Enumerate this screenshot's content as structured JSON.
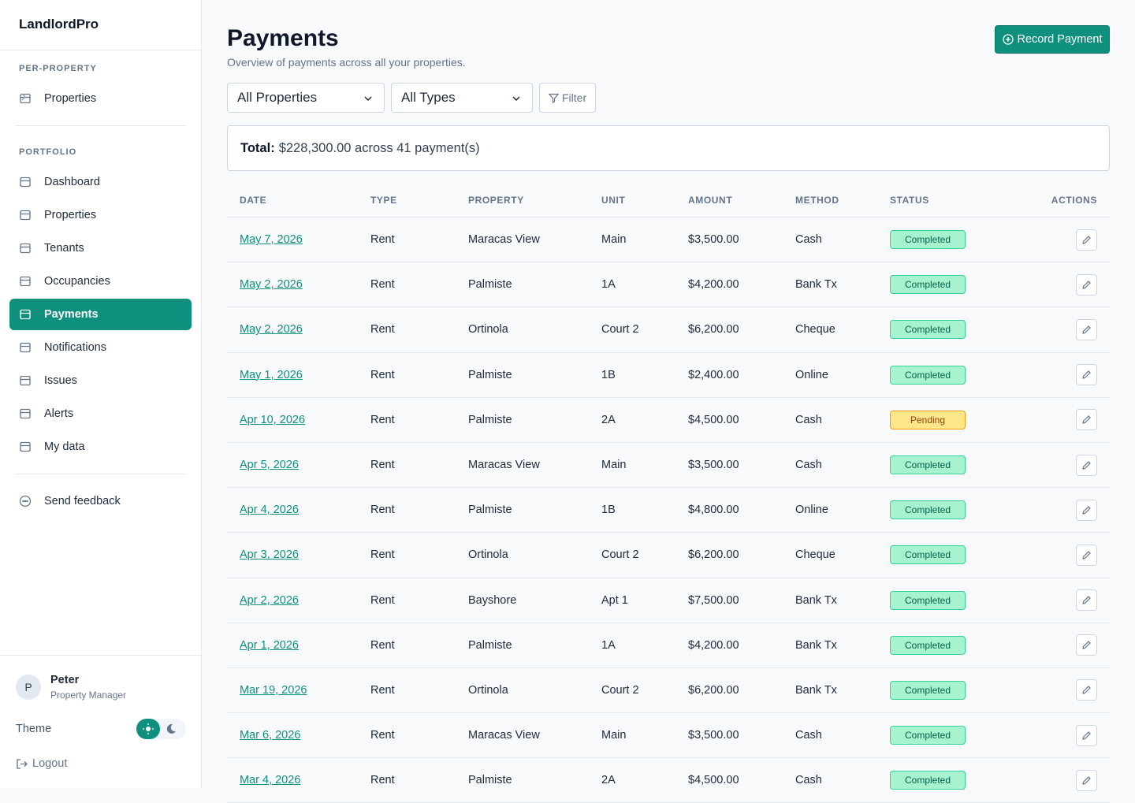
{
  "sidebar": {
    "brand": "LandlordPro",
    "sections": [
      {
        "heading": "PER-PROPERTY",
        "items": [
          "Properties"
        ]
      },
      {
        "heading": "PORTFOLIO",
        "items": [
          "Dashboard",
          "Properties",
          "Tenants",
          "Occupancies",
          "Payments",
          "Notifications",
          "Issues",
          "Alerts",
          "My data"
        ]
      }
    ],
    "feedback": "Send feedback",
    "user": {
      "initial": "P",
      "name": "Peter",
      "role": "Property Manager"
    },
    "theme": "Theme",
    "logout": "Logout"
  },
  "header": {
    "title": "Payments",
    "subtitle": "Overview of payments across all your properties.",
    "button": "Record Payment"
  },
  "filters": {
    "property": "All Properties",
    "type": "All Types",
    "filter": "Filter"
  },
  "summary": {
    "label": "Total:",
    "text": "$228,300.00 across 41 payment(s)"
  },
  "table": {
    "columns": [
      "DATE",
      "TYPE",
      "PROPERTY",
      "UNIT",
      "AMOUNT",
      "METHOD",
      "STATUS",
      "ACTIONS"
    ],
    "rows": [
      [
        "May 7, 2026",
        "Rent",
        "Maracas View",
        "Main",
        "$3,500.00",
        "Cash",
        "Completed"
      ],
      [
        "May 2, 2026",
        "Rent",
        "Palmiste",
        "1A",
        "$4,200.00",
        "Bank Tx",
        "Completed"
      ],
      [
        "May 2, 2026",
        "Rent",
        "Ortinola",
        "Court 2",
        "$6,200.00",
        "Cheque",
        "Completed"
      ],
      [
        "May 1, 2026",
        "Rent",
        "Palmiste",
        "1B",
        "$2,400.00",
        "Online",
        "Completed"
      ],
      [
        "Apr 10, 2026",
        "Rent",
        "Palmiste",
        "2A",
        "$4,500.00",
        "Cash",
        "Pending"
      ],
      [
        "Apr 5, 2026",
        "Rent",
        "Maracas View",
        "Main",
        "$3,500.00",
        "Cash",
        "Completed"
      ],
      [
        "Apr 4, 2026",
        "Rent",
        "Palmiste",
        "1B",
        "$4,800.00",
        "Online",
        "Completed"
      ],
      [
        "Apr 3, 2026",
        "Rent",
        "Ortinola",
        "Court 2",
        "$6,200.00",
        "Cheque",
        "Completed"
      ],
      [
        "Apr 2, 2026",
        "Rent",
        "Bayshore",
        "Apt 1",
        "$7,500.00",
        "Bank Tx",
        "Completed"
      ],
      [
        "Apr 1, 2026",
        "Rent",
        "Palmiste",
        "1A",
        "$4,200.00",
        "Bank Tx",
        "Completed"
      ],
      [
        "Mar 19, 2026",
        "Rent",
        "Ortinola",
        "Court 2",
        "$6,200.00",
        "Bank Tx",
        "Completed"
      ],
      [
        "Mar 6, 2026",
        "Rent",
        "Maracas View",
        "Main",
        "$3,500.00",
        "Cash",
        "Completed"
      ],
      [
        "Mar 4, 2026",
        "Rent",
        "Palmiste",
        "2A",
        "$4,500.00",
        "Cash",
        "Completed"
      ]
    ]
  }
}
